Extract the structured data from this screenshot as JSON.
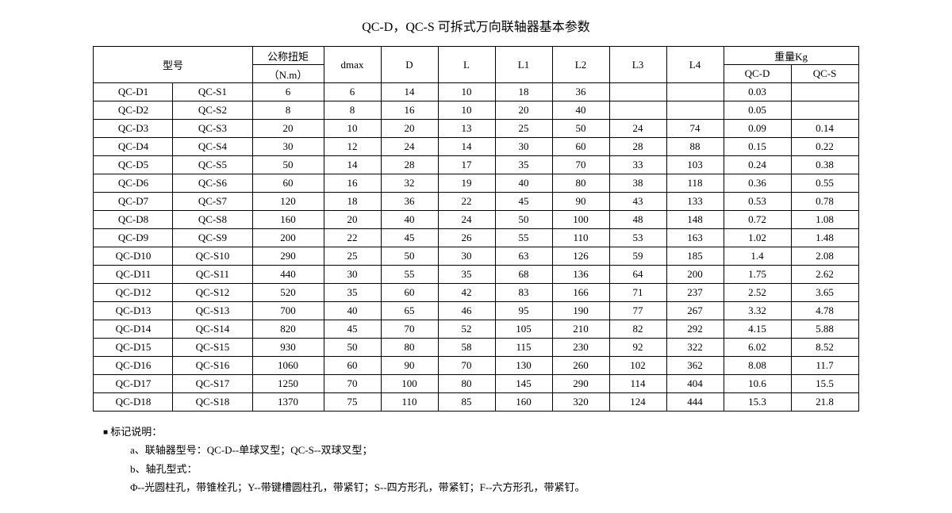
{
  "title": "QC-D，QC-S 可拆式万向联轴器基本参数",
  "table": {
    "type": "table",
    "headers": {
      "model": "型号",
      "torque": "公称扭矩",
      "torque_unit": "（N.m）",
      "dmax": "dmax",
      "D": "D",
      "L": "L",
      "L1": "L1",
      "L2": "L2",
      "L3": "L3",
      "L4": "L4",
      "weight": "重量Kg",
      "weight_qcd": "QC-D",
      "weight_qcs": "QC-S"
    },
    "rows": [
      {
        "m1": "QC-D1",
        "m2": "QC-S1",
        "t": "6",
        "dmax": "6",
        "D": "14",
        "L": "10",
        "L1": "18",
        "L2": "36",
        "L3": "",
        "L4": "",
        "wd": "0.03",
        "ws": ""
      },
      {
        "m1": "QC-D2",
        "m2": "QC-S2",
        "t": "8",
        "dmax": "8",
        "D": "16",
        "L": "10",
        "L1": "20",
        "L2": "40",
        "L3": "",
        "L4": "",
        "wd": "0.05",
        "ws": ""
      },
      {
        "m1": "QC-D3",
        "m2": "QC-S3",
        "t": "20",
        "dmax": "10",
        "D": "20",
        "L": "13",
        "L1": "25",
        "L2": "50",
        "L3": "24",
        "L4": "74",
        "wd": "0.09",
        "ws": "0.14"
      },
      {
        "m1": "QC-D4",
        "m2": "QC-S4",
        "t": "30",
        "dmax": "12",
        "D": "24",
        "L": "14",
        "L1": "30",
        "L2": "60",
        "L3": "28",
        "L4": "88",
        "wd": "0.15",
        "ws": "0.22"
      },
      {
        "m1": "QC-D5",
        "m2": "QC-S5",
        "t": "50",
        "dmax": "14",
        "D": "28",
        "L": "17",
        "L1": "35",
        "L2": "70",
        "L3": "33",
        "L4": "103",
        "wd": "0.24",
        "ws": "0.38"
      },
      {
        "m1": "QC-D6",
        "m2": "QC-S6",
        "t": "60",
        "dmax": "16",
        "D": "32",
        "L": "19",
        "L1": "40",
        "L2": "80",
        "L3": "38",
        "L4": "118",
        "wd": "0.36",
        "ws": "0.55"
      },
      {
        "m1": "QC-D7",
        "m2": "QC-S7",
        "t": "120",
        "dmax": "18",
        "D": "36",
        "L": "22",
        "L1": "45",
        "L2": "90",
        "L3": "43",
        "L4": "133",
        "wd": "0.53",
        "ws": "0.78"
      },
      {
        "m1": "QC-D8",
        "m2": "QC-S8",
        "t": "160",
        "dmax": "20",
        "D": "40",
        "L": "24",
        "L1": "50",
        "L2": "100",
        "L3": "48",
        "L4": "148",
        "wd": "0.72",
        "ws": "1.08"
      },
      {
        "m1": "QC-D9",
        "m2": "QC-S9",
        "t": "200",
        "dmax": "22",
        "D": "45",
        "L": "26",
        "L1": "55",
        "L2": "110",
        "L3": "53",
        "L4": "163",
        "wd": "1.02",
        "ws": "1.48"
      },
      {
        "m1": "QC-D10",
        "m2": "QC-S10",
        "t": "290",
        "dmax": "25",
        "D": "50",
        "L": "30",
        "L1": "63",
        "L2": "126",
        "L3": "59",
        "L4": "185",
        "wd": "1.4",
        "ws": "2.08"
      },
      {
        "m1": "QC-D11",
        "m2": "QC-S11",
        "t": "440",
        "dmax": "30",
        "D": "55",
        "L": "35",
        "L1": "68",
        "L2": "136",
        "L3": "64",
        "L4": "200",
        "wd": "1.75",
        "ws": "2.62"
      },
      {
        "m1": "QC-D12",
        "m2": "QC-S12",
        "t": "520",
        "dmax": "35",
        "D": "60",
        "L": "42",
        "L1": "83",
        "L2": "166",
        "L3": "71",
        "L4": "237",
        "wd": "2.52",
        "ws": "3.65"
      },
      {
        "m1": "QC-D13",
        "m2": "QC-S13",
        "t": "700",
        "dmax": "40",
        "D": "65",
        "L": "46",
        "L1": "95",
        "L2": "190",
        "L3": "77",
        "L4": "267",
        "wd": "3.32",
        "ws": "4.78"
      },
      {
        "m1": "QC-D14",
        "m2": "QC-S14",
        "t": "820",
        "dmax": "45",
        "D": "70",
        "L": "52",
        "L1": "105",
        "L2": "210",
        "L3": "82",
        "L4": "292",
        "wd": "4.15",
        "ws": "5.88"
      },
      {
        "m1": "QC-D15",
        "m2": "QC-S15",
        "t": "930",
        "dmax": "50",
        "D": "80",
        "L": "58",
        "L1": "115",
        "L2": "230",
        "L3": "92",
        "L4": "322",
        "wd": "6.02",
        "ws": "8.52"
      },
      {
        "m1": "QC-D16",
        "m2": "QC-S16",
        "t": "1060",
        "dmax": "60",
        "D": "90",
        "L": "70",
        "L1": "130",
        "L2": "260",
        "L3": "102",
        "L4": "362",
        "wd": "8.08",
        "ws": "11.7"
      },
      {
        "m1": "QC-D17",
        "m2": "QC-S17",
        "t": "1250",
        "dmax": "70",
        "D": "100",
        "L": "80",
        "L1": "145",
        "L2": "290",
        "L3": "114",
        "L4": "404",
        "wd": "10.6",
        "ws": "15.5"
      },
      {
        "m1": "QC-D18",
        "m2": "QC-S18",
        "t": "1370",
        "dmax": "75",
        "D": "110",
        "L": "85",
        "L1": "160",
        "L2": "320",
        "L3": "124",
        "L4": "444",
        "wd": "15.3",
        "ws": "21.8"
      }
    ]
  },
  "notes": {
    "heading": "标记说明：",
    "line_a": "a、联轴器型号：QC-D--单球叉型；QC-S--双球叉型；",
    "line_b": "b、轴孔型式：",
    "line_c": "Φ--光圆柱孔，带锥栓孔；Y--带键槽圆柱孔，带紧钉；S--四方形孔，带紧钉；F--六方形孔，带紧钉。"
  }
}
